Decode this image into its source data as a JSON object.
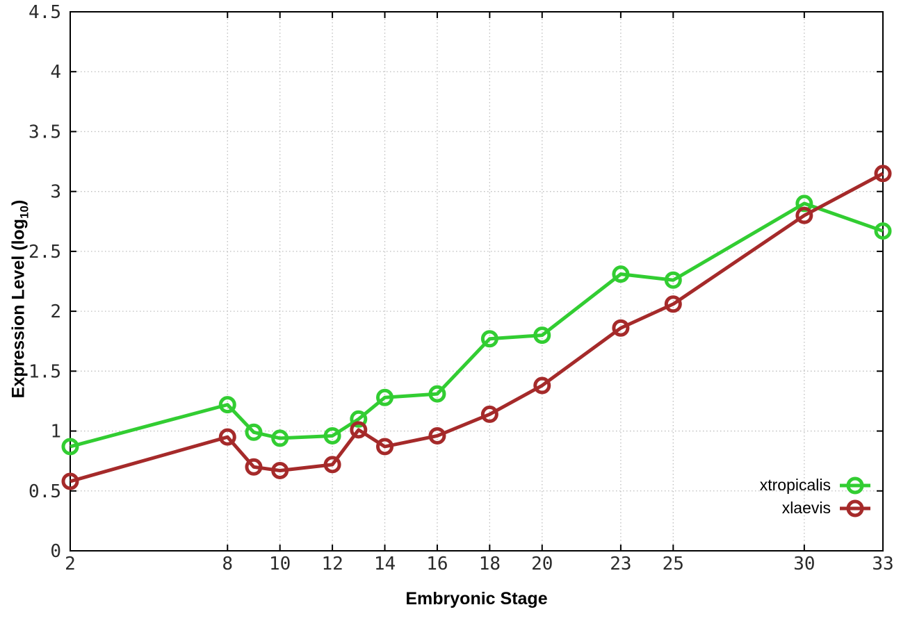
{
  "figure": {
    "background": "#ffffff"
  },
  "axes": {
    "x": {
      "label": "Embryonic Stage"
    },
    "y": {
      "label_prefix": "Expression Level (log",
      "label_sub": "10",
      "label_suffix": ")"
    }
  },
  "legend": {
    "position": "bottom-right-inside",
    "items": [
      {
        "label": "xtropicalis"
      },
      {
        "label": "xlaevis"
      }
    ]
  },
  "chart_data": {
    "type": "line",
    "xlabel": "Embryonic Stage",
    "ylabel": "Expression Level (log10)",
    "x": [
      2,
      8,
      9,
      10,
      12,
      13,
      14,
      16,
      18,
      20,
      23,
      25,
      30,
      33
    ],
    "series": [
      {
        "name": "xtropicalis",
        "color": "#32cd32",
        "values": [
          0.87,
          1.22,
          0.99,
          0.94,
          0.96,
          1.1,
          1.28,
          1.31,
          1.77,
          1.8,
          2.31,
          2.26,
          2.9,
          2.67
        ]
      },
      {
        "name": "xlaevis",
        "color": "#a52a2a",
        "values": [
          0.58,
          0.95,
          0.7,
          0.67,
          0.72,
          1.01,
          0.87,
          0.96,
          1.14,
          1.38,
          1.86,
          2.06,
          2.8,
          3.15
        ]
      }
    ],
    "xlim": [
      2,
      33
    ],
    "ylim": [
      0,
      4.5
    ],
    "xticks": [
      2,
      8,
      10,
      12,
      14,
      16,
      18,
      20,
      23,
      25,
      30,
      33
    ],
    "xtick_labels": [
      "2",
      "8",
      "10",
      "12",
      "14",
      "16",
      "18",
      "20",
      "23",
      "25",
      "30",
      "33"
    ],
    "yticks": [
      0,
      0.5,
      1,
      1.5,
      2,
      2.5,
      3,
      3.5,
      4,
      4.5
    ],
    "ytick_labels": [
      "0",
      "0.5",
      "1",
      "1.5",
      "2",
      "2.5",
      "3",
      "3.5",
      "4",
      "4.5"
    ],
    "grid": true,
    "grid_color": "#bdbdbd",
    "border_color": "#000000",
    "marker": "open-circle",
    "line_width": 5,
    "marker_radius": 10,
    "legend_position": "bottom-right"
  }
}
